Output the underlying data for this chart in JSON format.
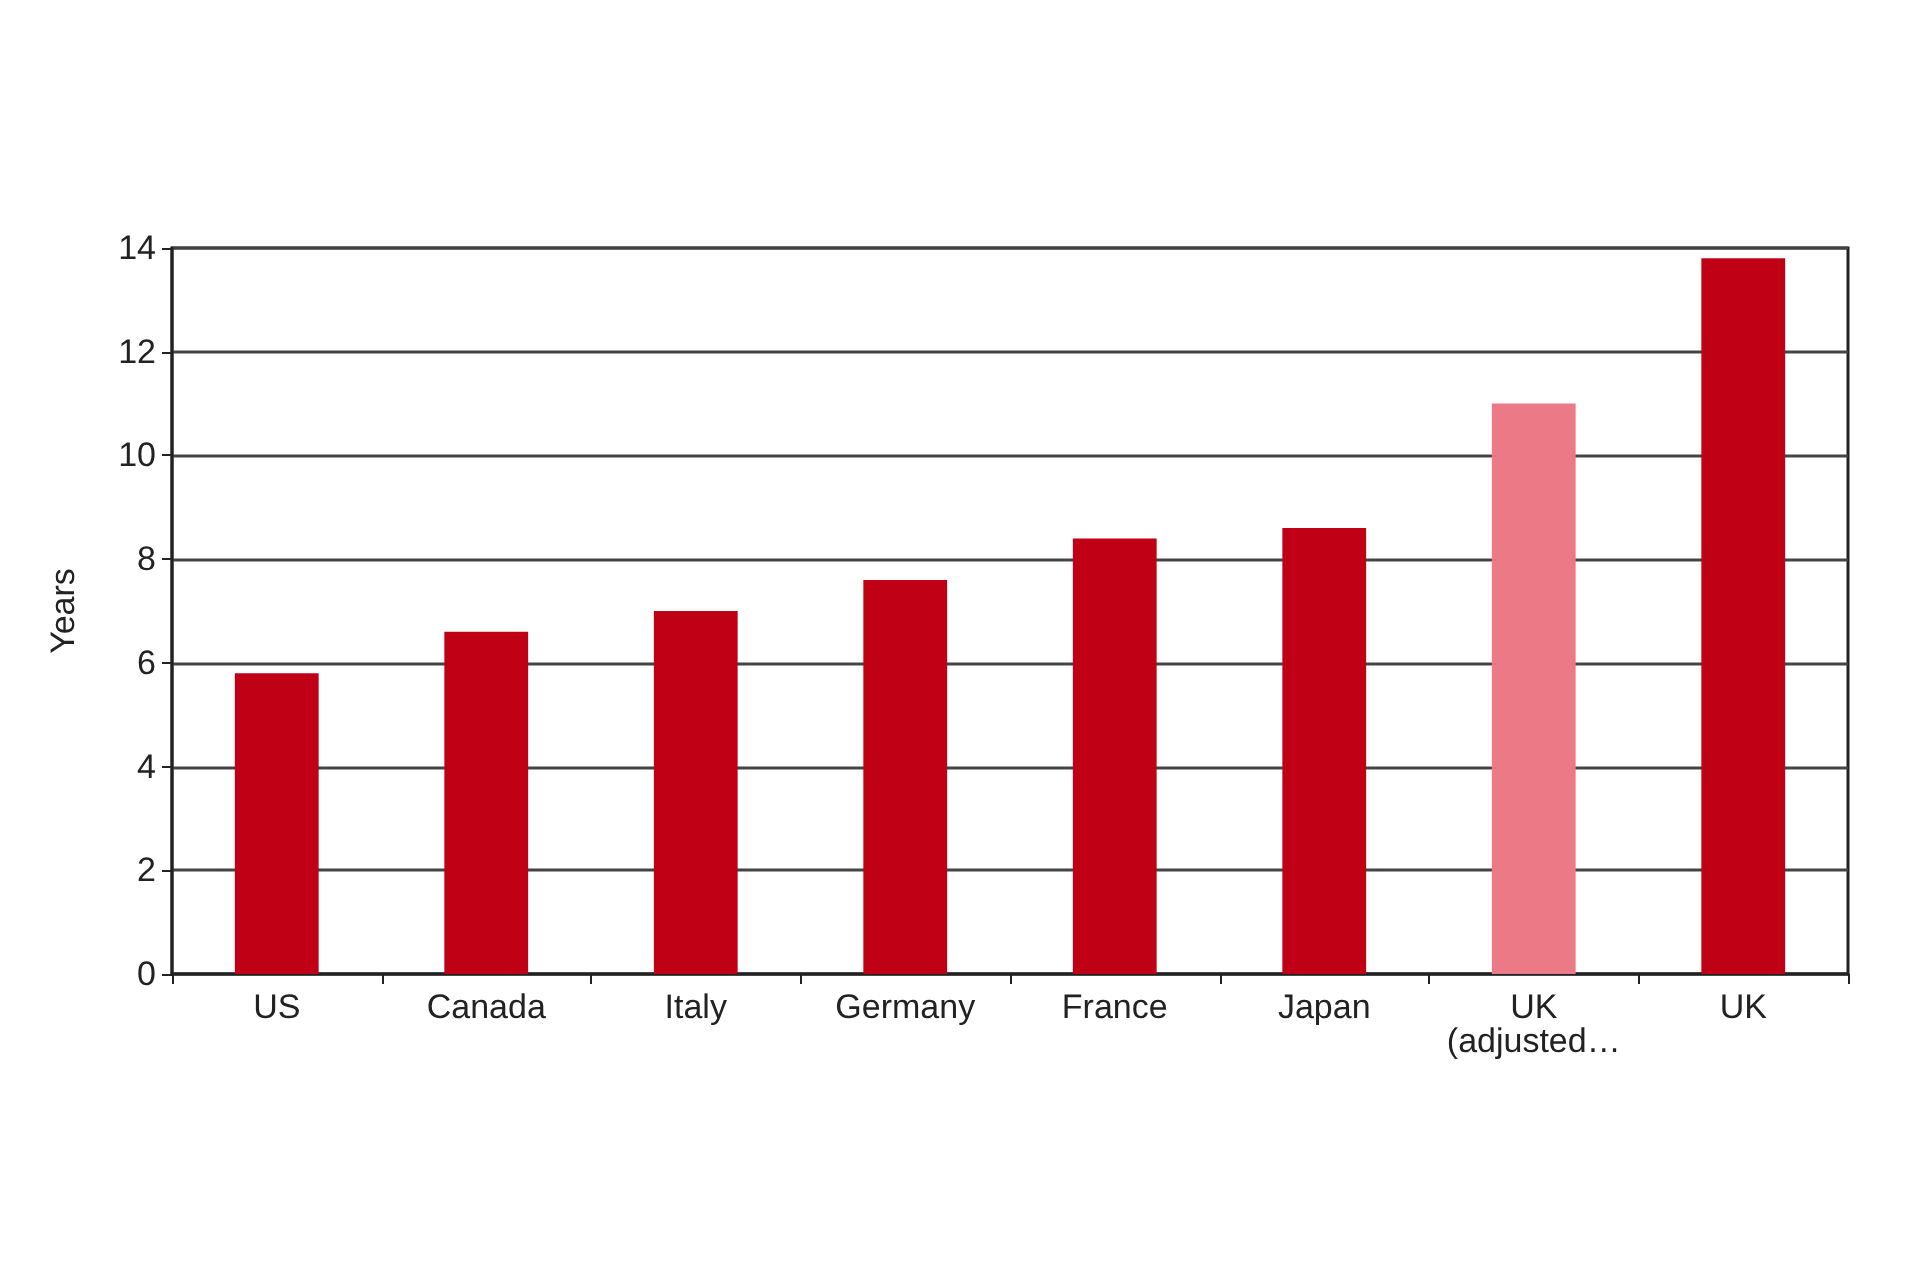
{
  "chart_data": {
    "type": "bar",
    "ylabel": "Years",
    "categories": [
      "US",
      "Canada",
      "Italy",
      "Germany",
      "France",
      "Japan",
      "UK\n(adjusted…",
      "UK"
    ],
    "values": [
      5.8,
      6.6,
      7.0,
      7.6,
      8.4,
      8.6,
      11.0,
      13.8
    ],
    "colors": [
      "#c00014",
      "#c00014",
      "#c00014",
      "#c00014",
      "#c00014",
      "#c00014",
      "#ec7a86",
      "#c00014"
    ],
    "ylim": [
      0,
      14
    ],
    "yticks": [
      0,
      2,
      4,
      6,
      8,
      10,
      12,
      14
    ],
    "grid": true
  }
}
